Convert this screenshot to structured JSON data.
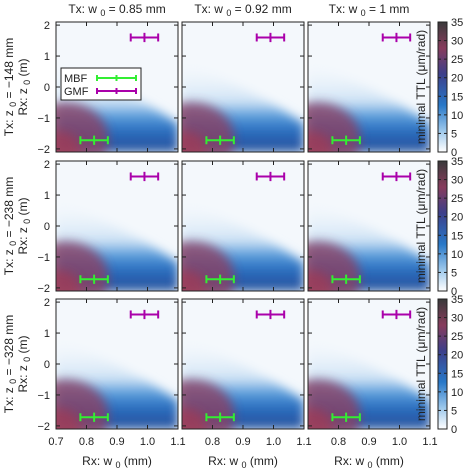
{
  "chart_data": {
    "type": "heatmap",
    "layout": {
      "rows": 3,
      "cols": 3
    },
    "column_titles": [
      "Tx: w",
      "Tx: w",
      "Tx: w"
    ],
    "column_title_values": [
      "= 0.85 mm",
      "= 0.92 mm",
      "= 1 mm"
    ],
    "row_titles": [
      "Tx: z",
      "Tx: z",
      "Tx: z"
    ],
    "row_title_values": [
      "= −148 mm",
      "= −238 mm",
      "= −328 mm"
    ],
    "ylabel": "Rx: z",
    "ylabel_unit": "(m)",
    "xlabel": "Rx: w",
    "xlabel_unit": "(mm)",
    "subscript": "0",
    "xlim": [
      0.7,
      1.1
    ],
    "ylim": [
      -2.1,
      2.1
    ],
    "xticks": [
      0.7,
      0.8,
      0.9,
      1.0,
      1.1
    ],
    "xtick_labels": [
      "0.7",
      "0.8",
      "0.9",
      "1.0",
      "1.1"
    ],
    "yticks": [
      -2,
      -1,
      0,
      1,
      2
    ],
    "ytick_labels": [
      "−2",
      "−1",
      "0",
      "1",
      "2"
    ],
    "colorbar": {
      "label": "minimal TTL (μm/rad)",
      "range": [
        0,
        35
      ],
      "ticks": [
        0,
        5,
        10,
        15,
        20,
        25,
        30,
        35
      ],
      "colors": [
        "#ffffff",
        "#9ec9ec",
        "#2878c8",
        "#3d3f8a",
        "#873c5c",
        "#3a3a3a"
      ]
    },
    "legend": {
      "placement": "top-left",
      "entries": [
        "MBF",
        "GMF"
      ]
    },
    "series": [
      {
        "name": "MBF",
        "color": "#33ee33",
        "x": 0.825,
        "y": -1.72,
        "x_err": 0.045,
        "y_err": 0.15
      },
      {
        "name": "GMF",
        "color": "#aa00aa",
        "x": 0.99,
        "y": 1.6,
        "x_err": 0.045,
        "y_err": 0.15
      }
    ]
  }
}
